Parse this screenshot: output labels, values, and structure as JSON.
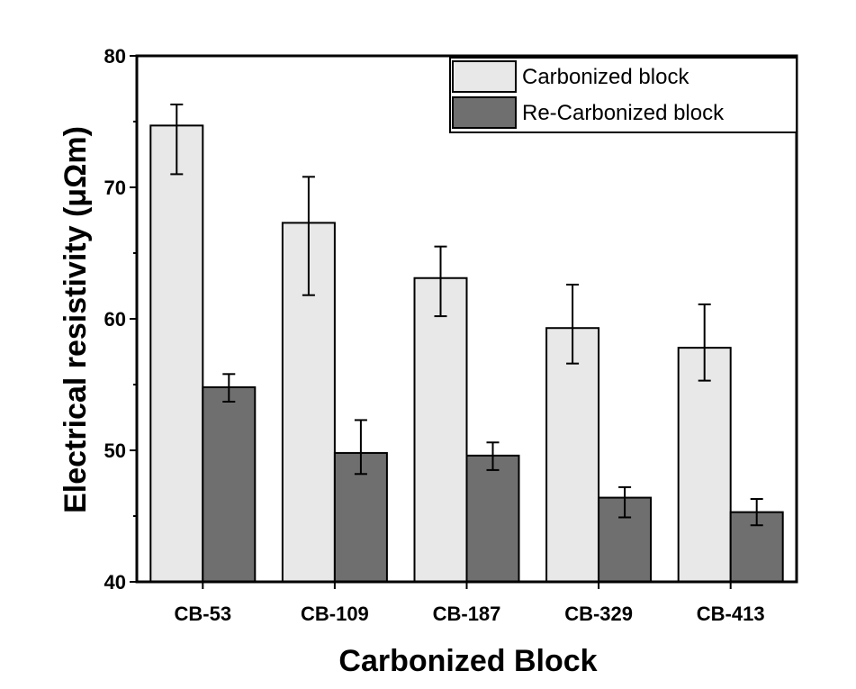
{
  "chart_data": {
    "type": "bar",
    "title": "",
    "xlabel": "Carbonized Block",
    "ylabel": "Electrical resistivity (μΩm)",
    "ylim": [
      40,
      80
    ],
    "yticks": [
      40,
      50,
      60,
      70,
      80
    ],
    "categories": [
      "CB-53",
      "CB-109",
      "CB-187",
      "CB-329",
      "CB-413"
    ],
    "series": [
      {
        "name": "Carbonized block",
        "color": "#e8e8e8",
        "values": [
          74.7,
          67.3,
          63.1,
          59.3,
          57.8
        ],
        "error_low": [
          71.0,
          61.8,
          60.2,
          56.6,
          55.3
        ],
        "error_high": [
          76.3,
          70.8,
          65.5,
          62.6,
          61.1
        ]
      },
      {
        "name": "Re-Carbonized block",
        "color": "#6f6f6f",
        "values": [
          54.8,
          49.8,
          49.6,
          46.4,
          45.3
        ],
        "error_low": [
          53.7,
          48.2,
          48.5,
          44.9,
          44.3
        ],
        "error_high": [
          55.8,
          52.3,
          50.6,
          47.2,
          46.3
        ]
      }
    ],
    "legend": "top-right",
    "grid": false
  }
}
